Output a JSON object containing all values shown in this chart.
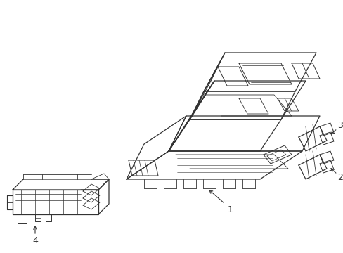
{
  "background_color": "#ffffff",
  "line_color": "#333333",
  "line_width": 0.9,
  "figsize": [
    4.89,
    3.6
  ],
  "dpi": 100
}
